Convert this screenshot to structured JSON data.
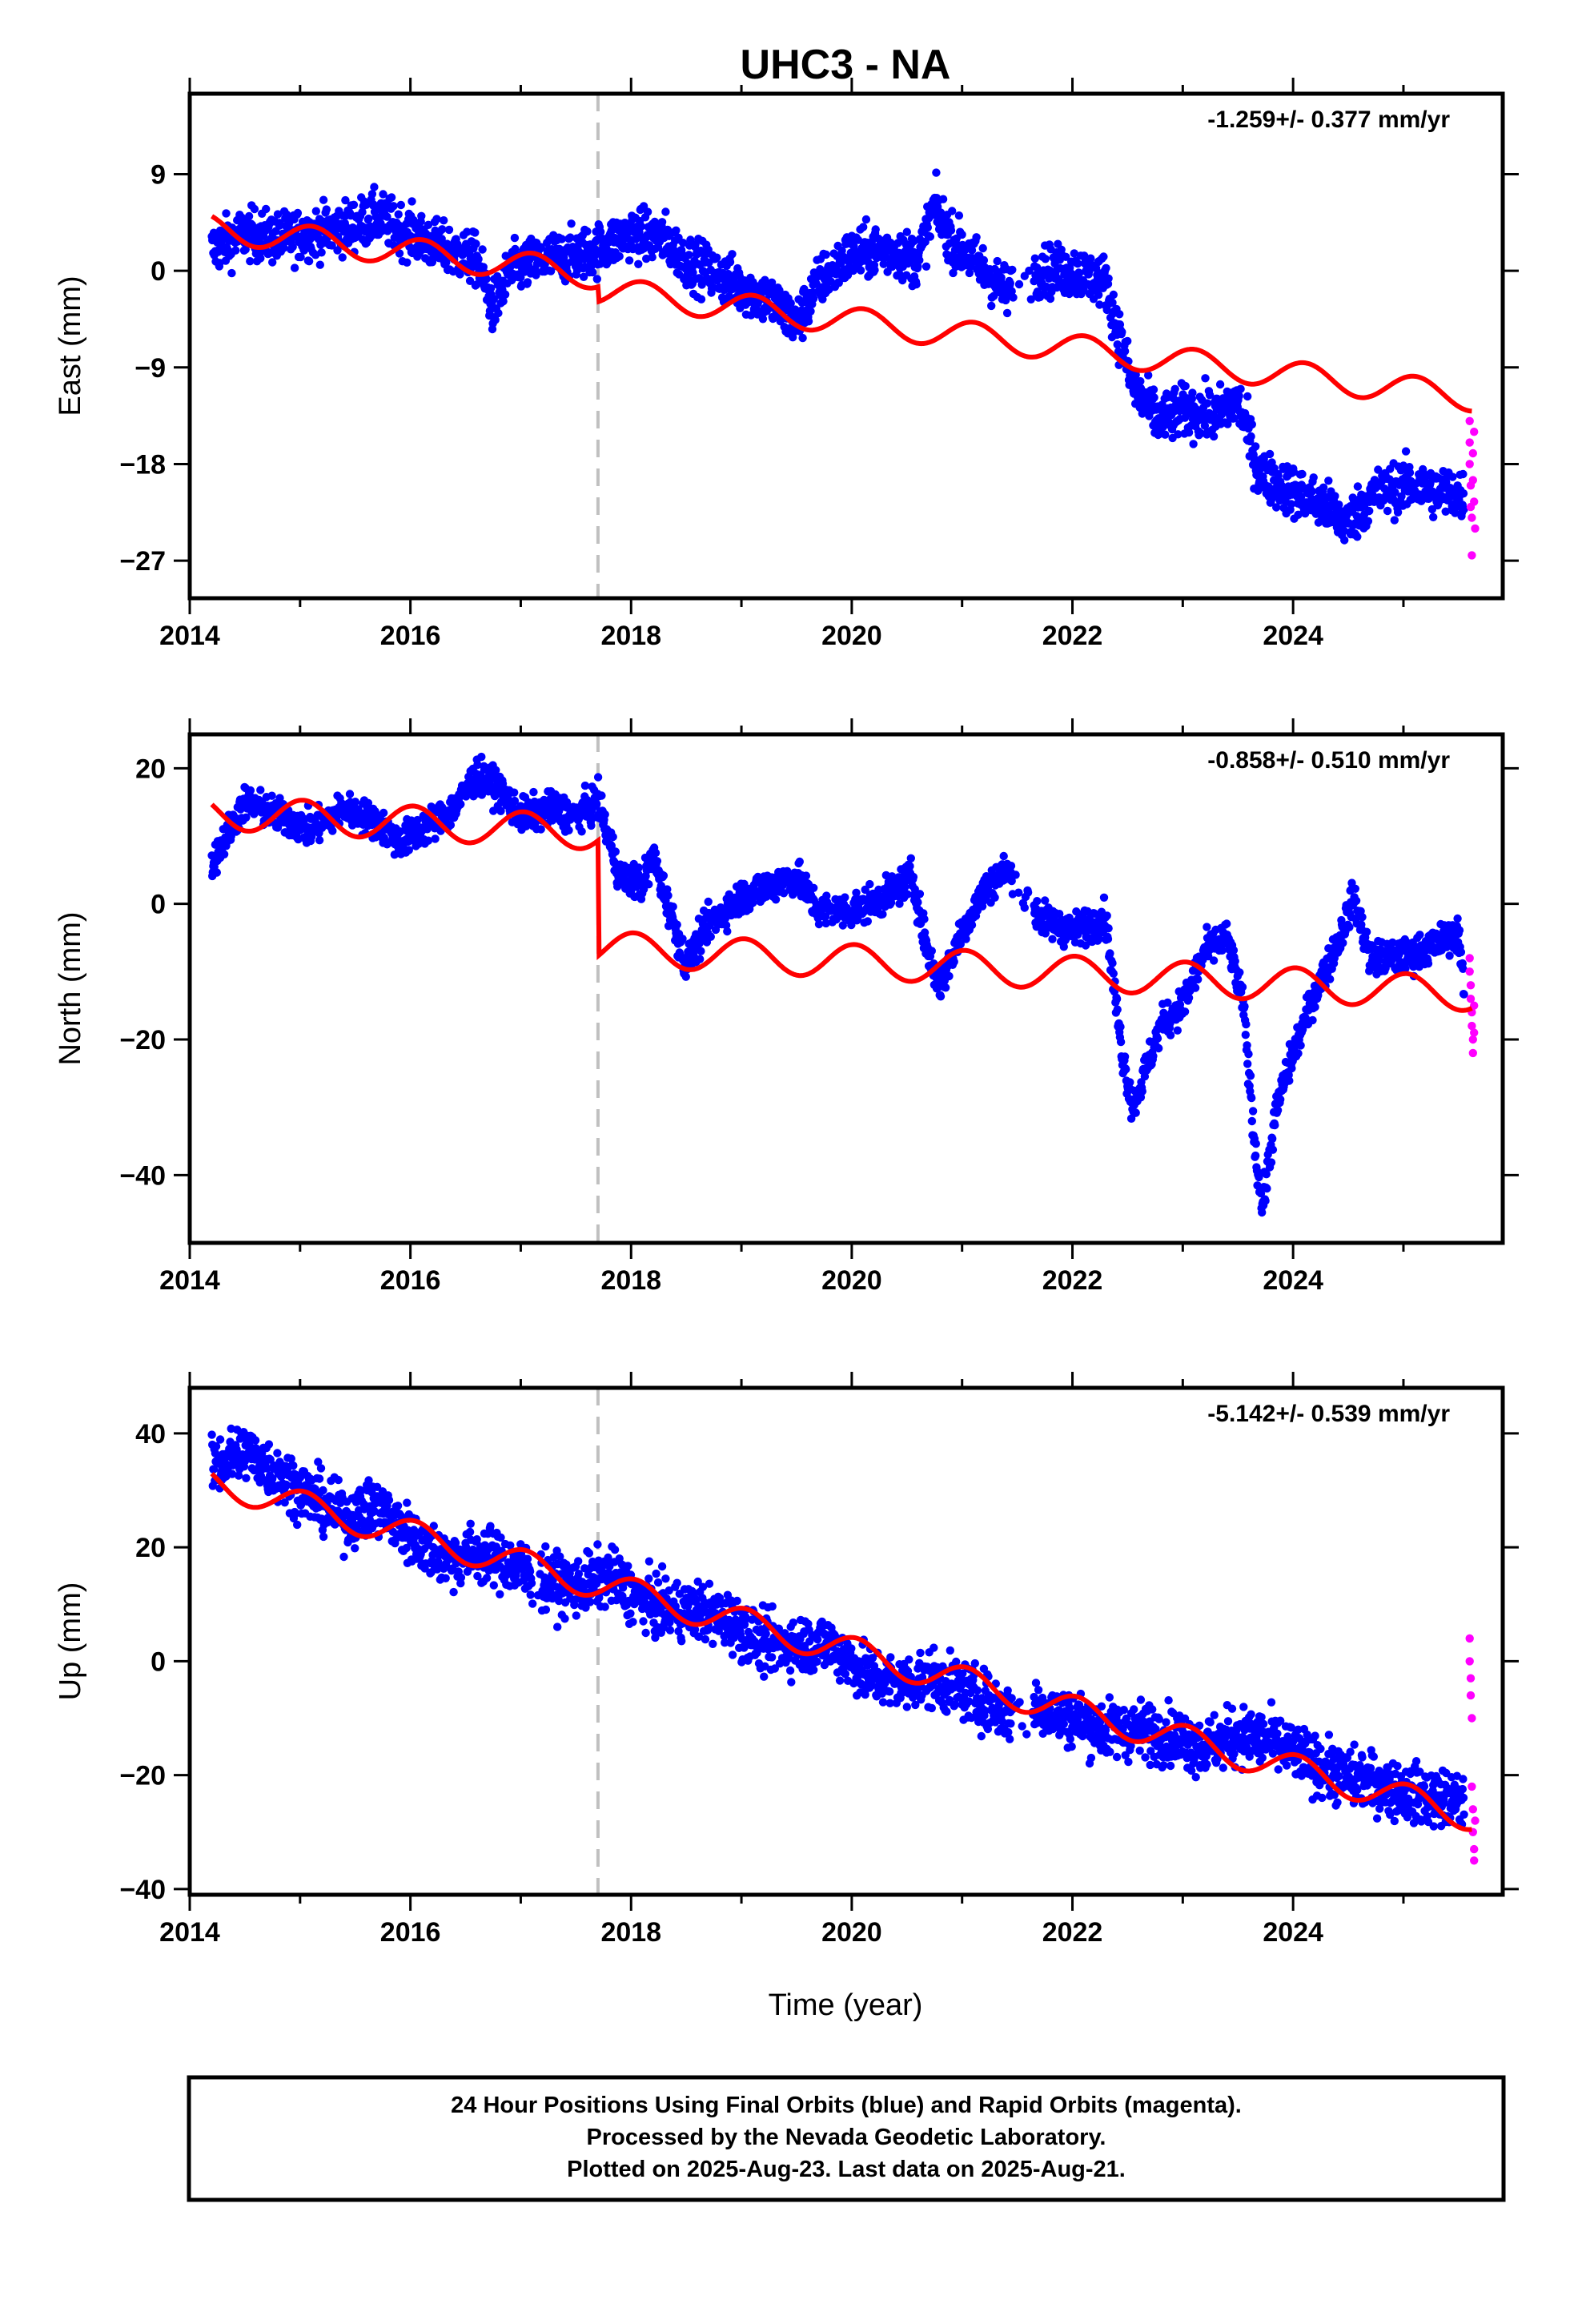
{
  "title": "UHC3 - NA",
  "xlabel": "Time (year)",
  "footer": {
    "line1": "24 Hour Positions Using Final Orbits (blue) and Rapid Orbits (magenta).",
    "line2": "Processed by the Nevada Geodetic Laboratory.",
    "line3": "Plotted on 2025-Aug-23. Last data on 2025-Aug-21."
  },
  "colors": {
    "final": "#0000ff",
    "rapid": "#ff00ff",
    "model": "#ff0000",
    "event": "#c0c0c0",
    "frame": "#000000"
  },
  "chart_data": [
    {
      "type": "scatter",
      "component": "East",
      "ylabel": "East (mm)",
      "rate": "-1.259+/- 0.377 mm/yr",
      "xlim": [
        2014.0,
        2025.9
      ],
      "ylim": [
        -30.5,
        16.5
      ],
      "xticks": [
        2014,
        2016,
        2018,
        2020,
        2022,
        2024
      ],
      "yticks": [
        9,
        0,
        -9,
        -18,
        -27
      ],
      "ytick_labels": [
        "9",
        "0",
        "−9",
        "−18",
        "−27"
      ],
      "event_x": 2017.7,
      "event_offset": -1.4,
      "model": {
        "intercept": 4.0,
        "trend": -1.259,
        "t0": 2014.2,
        "annual_amp": 1.3,
        "annual_phase": 0.9
      },
      "final_series": [
        [
          2014.2,
          2.0
        ],
        [
          2014.5,
          3.5
        ],
        [
          2014.8,
          3.0
        ],
        [
          2015.1,
          3.5
        ],
        [
          2015.4,
          4.0
        ],
        [
          2015.7,
          5.0
        ],
        [
          2016.0,
          3.5
        ],
        [
          2016.3,
          2.0
        ],
        [
          2016.6,
          1.0
        ],
        [
          2016.75,
          -3.5
        ],
        [
          2016.9,
          0.0
        ],
        [
          2017.2,
          1.0
        ],
        [
          2017.5,
          1.5
        ],
        [
          2017.7,
          2.0
        ],
        [
          2018.0,
          3.5
        ],
        [
          2018.3,
          3.0
        ],
        [
          2018.5,
          1.0
        ],
        [
          2018.7,
          0.0
        ],
        [
          2019.0,
          -1.5
        ],
        [
          2019.3,
          -3.0
        ],
        [
          2019.5,
          -5.0
        ],
        [
          2019.7,
          -1.0
        ],
        [
          2020.0,
          1.5
        ],
        [
          2020.3,
          2.0
        ],
        [
          2020.6,
          1.0
        ],
        [
          2020.75,
          6.0
        ],
        [
          2020.9,
          3.0
        ],
        [
          2021.1,
          1.0
        ],
        [
          2021.3,
          -1.0
        ],
        [
          2021.4,
          -2.0
        ],
        [
          2021.7,
          0.0
        ],
        [
          2022.0,
          0.0
        ],
        [
          2022.3,
          -1.0
        ],
        [
          2022.55,
          -11.0
        ],
        [
          2022.8,
          -14.0
        ],
        [
          2023.0,
          -13.0
        ],
        [
          2023.3,
          -13.5
        ],
        [
          2023.5,
          -12.0
        ],
        [
          2023.7,
          -19.0
        ],
        [
          2024.0,
          -20.5
        ],
        [
          2024.3,
          -22.0
        ],
        [
          2024.5,
          -23.5
        ],
        [
          2024.7,
          -21.0
        ],
        [
          2025.0,
          -20.0
        ],
        [
          2025.3,
          -20.5
        ],
        [
          2025.55,
          -21.0
        ]
      ],
      "noise": 1.7,
      "rapid_series": [
        [
          2025.6,
          -14.0
        ],
        [
          2025.6,
          -16.0
        ],
        [
          2025.6,
          -18.0
        ],
        [
          2025.61,
          -20.0
        ],
        [
          2025.61,
          -22.0
        ],
        [
          2025.62,
          -23.0
        ],
        [
          2025.62,
          -26.5
        ],
        [
          2025.63,
          -17.0
        ],
        [
          2025.63,
          -19.5
        ],
        [
          2025.64,
          -15.0
        ],
        [
          2025.64,
          -21.5
        ],
        [
          2025.65,
          -24.0
        ]
      ]
    },
    {
      "type": "scatter",
      "component": "North",
      "ylabel": "North (mm)",
      "rate": "-0.858+/- 0.510 mm/yr",
      "xlim": [
        2014.0,
        2025.9
      ],
      "ylim": [
        -50.0,
        25.0
      ],
      "xticks": [
        2014,
        2016,
        2018,
        2020,
        2022,
        2024
      ],
      "yticks": [
        20,
        0,
        -20,
        -40
      ],
      "ytick_labels": [
        "20",
        "0",
        "−20",
        "−40"
      ],
      "event_x": 2017.7,
      "event_offset": -17.0,
      "model": {
        "intercept": 13.5,
        "trend": -0.858,
        "t0": 2014.2,
        "annual_amp": 2.5,
        "annual_phase": 1.4
      },
      "final_series": [
        [
          2014.2,
          6.0
        ],
        [
          2014.5,
          15.0
        ],
        [
          2014.8,
          13.0
        ],
        [
          2015.1,
          11.0
        ],
        [
          2015.4,
          14.0
        ],
        [
          2015.7,
          12.0
        ],
        [
          2015.9,
          9.0
        ],
        [
          2016.1,
          11.0
        ],
        [
          2016.4,
          14.0
        ],
        [
          2016.6,
          19.0
        ],
        [
          2016.8,
          17.0
        ],
        [
          2017.0,
          13.0
        ],
        [
          2017.3,
          14.0
        ],
        [
          2017.5,
          13.0
        ],
        [
          2017.7,
          15.0
        ],
        [
          2017.9,
          4.0
        ],
        [
          2018.1,
          3.0
        ],
        [
          2018.2,
          7.0
        ],
        [
          2018.5,
          -9.0
        ],
        [
          2018.7,
          -3.0
        ],
        [
          2019.0,
          1.0
        ],
        [
          2019.3,
          3.0
        ],
        [
          2019.5,
          4.0
        ],
        [
          2019.7,
          -1.0
        ],
        [
          2020.0,
          -1.0
        ],
        [
          2020.3,
          1.0
        ],
        [
          2020.55,
          4.0
        ],
        [
          2020.7,
          -8.0
        ],
        [
          2020.8,
          -12.0
        ],
        [
          2021.0,
          -4.0
        ],
        [
          2021.2,
          2.0
        ],
        [
          2021.4,
          5.0
        ],
        [
          2021.7,
          -2.0
        ],
        [
          2022.0,
          -4.0
        ],
        [
          2022.3,
          -2.0
        ],
        [
          2022.45,
          -22.0
        ],
        [
          2022.55,
          -30.0
        ],
        [
          2022.8,
          -18.0
        ],
        [
          2023.0,
          -15.0
        ],
        [
          2023.2,
          -7.0
        ],
        [
          2023.4,
          -5.0
        ],
        [
          2023.55,
          -15.0
        ],
        [
          2023.65,
          -35.0
        ],
        [
          2023.72,
          -45.0
        ],
        [
          2023.85,
          -30.0
        ],
        [
          2024.0,
          -22.0
        ],
        [
          2024.2,
          -13.0
        ],
        [
          2024.4,
          -6.0
        ],
        [
          2024.55,
          1.0
        ],
        [
          2024.7,
          -8.0
        ],
        [
          2025.0,
          -8.0
        ],
        [
          2025.3,
          -6.0
        ],
        [
          2025.5,
          -4.0
        ],
        [
          2025.55,
          -13.0
        ]
      ],
      "noise": 1.8,
      "rapid_series": [
        [
          2025.6,
          -8.0
        ],
        [
          2025.6,
          -10.0
        ],
        [
          2025.61,
          -12.0
        ],
        [
          2025.61,
          -14.0
        ],
        [
          2025.62,
          -16.0
        ],
        [
          2025.62,
          -18.0
        ],
        [
          2025.63,
          -20.0
        ],
        [
          2025.63,
          -22.0
        ],
        [
          2025.64,
          -15.0
        ],
        [
          2025.64,
          -19.0
        ]
      ]
    },
    {
      "type": "scatter",
      "component": "Up",
      "ylabel": "Up (mm)",
      "rate": "-5.142+/- 0.539 mm/yr",
      "xlim": [
        2014.0,
        2025.9
      ],
      "ylim": [
        -41.0,
        48.0
      ],
      "xticks": [
        2014,
        2016,
        2018,
        2020,
        2022,
        2024
      ],
      "yticks": [
        40,
        20,
        0,
        -20,
        -40
      ],
      "ytick_labels": [
        "40",
        "20",
        "0",
        "−20",
        "−40"
      ],
      "event_x": 2017.7,
      "event_offset": 0,
      "model": {
        "intercept": 31.5,
        "trend": -5.142,
        "t0": 2014.2,
        "annual_amp": 2.6,
        "annual_phase": 1.3
      },
      "final_series": [
        [
          2014.2,
          34.0
        ],
        [
          2014.5,
          37.0
        ],
        [
          2014.8,
          33.0
        ],
        [
          2015.1,
          29.0
        ],
        [
          2015.4,
          25.0
        ],
        [
          2015.7,
          27.0
        ],
        [
          2016.0,
          22.0
        ],
        [
          2016.3,
          18.0
        ],
        [
          2016.6,
          19.0
        ],
        [
          2016.9,
          17.0
        ],
        [
          2017.2,
          14.0
        ],
        [
          2017.5,
          13.0
        ],
        [
          2017.8,
          15.0
        ],
        [
          2018.0,
          12.0
        ],
        [
          2018.3,
          9.0
        ],
        [
          2018.6,
          9.0
        ],
        [
          2018.9,
          7.0
        ],
        [
          2019.2,
          3.0
        ],
        [
          2019.5,
          3.0
        ],
        [
          2019.8,
          3.0
        ],
        [
          2020.1,
          -2.0
        ],
        [
          2020.4,
          -4.0
        ],
        [
          2020.7,
          -3.0
        ],
        [
          2021.0,
          -5.0
        ],
        [
          2021.3,
          -8.0
        ],
        [
          2021.4,
          -9.0
        ],
        [
          2021.7,
          -8.0
        ],
        [
          2022.0,
          -10.0
        ],
        [
          2022.3,
          -12.0
        ],
        [
          2022.6,
          -12.0
        ],
        [
          2022.9,
          -13.0
        ],
        [
          2023.2,
          -15.0
        ],
        [
          2023.5,
          -13.0
        ],
        [
          2023.8,
          -14.0
        ],
        [
          2024.1,
          -17.0
        ],
        [
          2024.4,
          -20.0
        ],
        [
          2024.7,
          -21.0
        ],
        [
          2025.0,
          -23.0
        ],
        [
          2025.3,
          -24.0
        ],
        [
          2025.55,
          -25.0
        ]
      ],
      "noise": 3.6,
      "rapid_series": [
        [
          2025.6,
          4.0
        ],
        [
          2025.6,
          0.0
        ],
        [
          2025.61,
          -3.0
        ],
        [
          2025.61,
          -6.0
        ],
        [
          2025.62,
          -10.0
        ],
        [
          2025.62,
          -22.0
        ],
        [
          2025.63,
          -26.0
        ],
        [
          2025.63,
          -30.0
        ],
        [
          2025.64,
          -33.0
        ],
        [
          2025.64,
          -35.0
        ],
        [
          2025.65,
          -28.0
        ]
      ]
    }
  ]
}
